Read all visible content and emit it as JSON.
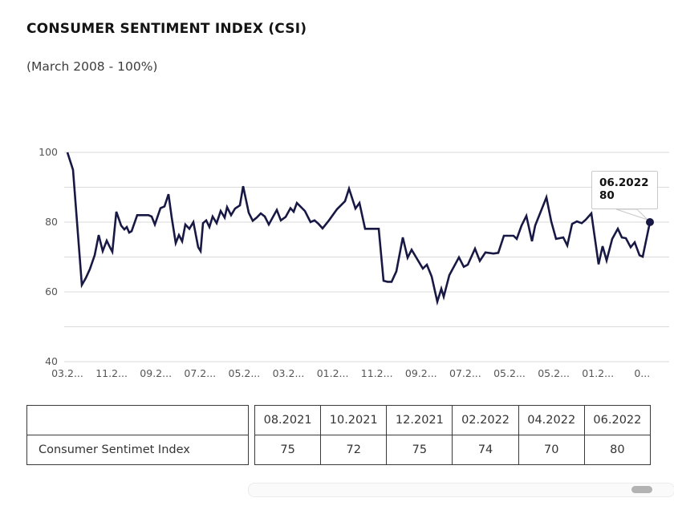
{
  "header": {
    "title": "CONSUMER SENTIMENT INDEX (CSI)",
    "subtitle": "(March 2008 - 100%)"
  },
  "chart_data": {
    "type": "line",
    "series_name": "Consumer Sentiment Index",
    "ylim": [
      40,
      100
    ],
    "y_tick_labels": [
      "100",
      "80",
      "60",
      "40"
    ],
    "y_tick_values": [
      100,
      80,
      60,
      40
    ],
    "gridline_values": [
      100,
      90,
      80,
      70,
      60,
      50,
      40
    ],
    "x_tick_labels": [
      "03.2...",
      "11.2...",
      "09.2...",
      "07.2...",
      "05.2...",
      "03.2...",
      "01.2...",
      "11.2...",
      "09.2...",
      "07.2...",
      "05.2...",
      "05.2...",
      "01.2...",
      "0..."
    ],
    "line_color": "#181844",
    "grid_color": "#dadada",
    "points": [
      [
        0,
        100
      ],
      [
        7,
        95
      ],
      [
        18,
        62
      ],
      [
        23,
        64
      ],
      [
        28,
        66.5
      ],
      [
        34,
        70.5
      ],
      [
        39,
        76.3
      ],
      [
        44,
        71.7
      ],
      [
        49,
        74.7
      ],
      [
        53,
        72.8
      ],
      [
        56,
        71.5
      ],
      [
        61,
        83
      ],
      [
        67,
        79
      ],
      [
        71,
        77.9
      ],
      [
        74,
        78.6
      ],
      [
        77,
        77
      ],
      [
        80,
        77.4
      ],
      [
        87,
        82
      ],
      [
        101,
        82
      ],
      [
        105,
        81.6
      ],
      [
        109,
        79.3
      ],
      [
        116,
        84
      ],
      [
        121,
        84.5
      ],
      [
        126,
        88
      ],
      [
        130,
        81.3
      ],
      [
        135,
        74
      ],
      [
        139,
        76.3
      ],
      [
        143,
        74.5
      ],
      [
        147,
        79.3
      ],
      [
        152,
        78.1
      ],
      [
        157,
        80
      ],
      [
        163,
        72.8
      ],
      [
        166,
        71.7
      ],
      [
        169,
        79.7
      ],
      [
        173,
        80.5
      ],
      [
        177,
        78.6
      ],
      [
        181,
        81.6
      ],
      [
        186,
        79.7
      ],
      [
        191,
        83.2
      ],
      [
        196,
        81.3
      ],
      [
        199,
        84.3
      ],
      [
        204,
        82
      ],
      [
        209,
        83.9
      ],
      [
        215,
        84.8
      ],
      [
        219,
        90.3
      ],
      [
        226,
        82.7
      ],
      [
        231,
        80.4
      ],
      [
        236,
        81.3
      ],
      [
        241,
        82.5
      ],
      [
        246,
        81.6
      ],
      [
        251,
        79.3
      ],
      [
        261,
        83.5
      ],
      [
        266,
        80.5
      ],
      [
        272,
        81.5
      ],
      [
        278,
        84
      ],
      [
        282,
        83
      ],
      [
        286,
        85.5
      ],
      [
        296,
        83.2
      ],
      [
        303,
        80
      ],
      [
        308,
        80.5
      ],
      [
        313,
        79.5
      ],
      [
        318,
        78.2
      ],
      [
        326,
        80.5
      ],
      [
        336,
        83.7
      ],
      [
        346,
        86
      ],
      [
        351,
        89.6
      ],
      [
        359,
        83.9
      ],
      [
        364,
        85.5
      ],
      [
        371,
        78.1
      ],
      [
        380,
        78.1
      ],
      [
        388,
        78.1
      ],
      [
        394,
        63.2
      ],
      [
        399,
        62.9
      ],
      [
        404,
        62.9
      ],
      [
        410,
        65.9
      ],
      [
        418,
        75.6
      ],
      [
        424,
        69.8
      ],
      [
        429,
        72.1
      ],
      [
        443,
        66.7
      ],
      [
        448,
        67.8
      ],
      [
        454,
        64.4
      ],
      [
        461,
        57.2
      ],
      [
        466,
        60.9
      ],
      [
        469,
        58.6
      ],
      [
        476,
        64.8
      ],
      [
        488,
        69.9
      ],
      [
        494,
        67.2
      ],
      [
        499,
        67.8
      ],
      [
        508,
        72.4
      ],
      [
        514,
        68.9
      ],
      [
        521,
        71.3
      ],
      [
        531,
        71
      ],
      [
        537,
        71.2
      ],
      [
        544,
        76.1
      ],
      [
        556,
        76.1
      ],
      [
        560,
        75.2
      ],
      [
        566,
        79
      ],
      [
        572,
        81.8
      ],
      [
        579,
        74.5
      ],
      [
        583,
        79
      ],
      [
        597,
        87.1
      ],
      [
        603,
        80.2
      ],
      [
        609,
        75.2
      ],
      [
        618,
        75.6
      ],
      [
        623,
        73.3
      ],
      [
        629,
        79.5
      ],
      [
        635,
        80.2
      ],
      [
        641,
        79.7
      ],
      [
        646,
        80.7
      ],
      [
        653,
        82.5
      ],
      [
        662,
        67.9
      ],
      [
        667,
        73.1
      ],
      [
        672,
        69
      ],
      [
        679,
        75.2
      ],
      [
        686,
        78.1
      ],
      [
        691,
        75.6
      ],
      [
        696,
        75.4
      ],
      [
        702,
        72.8
      ],
      [
        707,
        74.2
      ],
      [
        713,
        70.5
      ],
      [
        717,
        70.1
      ],
      [
        726,
        80
      ]
    ],
    "last_point_label": {
      "date": "06.2022",
      "value": "80"
    }
  },
  "table": {
    "row_label": "Consumer Sentimet Index",
    "columns": [
      "08.2021",
      "10.2021",
      "12.2021",
      "02.2022",
      "04.2022",
      "06.2022"
    ],
    "values": [
      "75",
      "72",
      "75",
      "74",
      "70",
      "80"
    ]
  }
}
